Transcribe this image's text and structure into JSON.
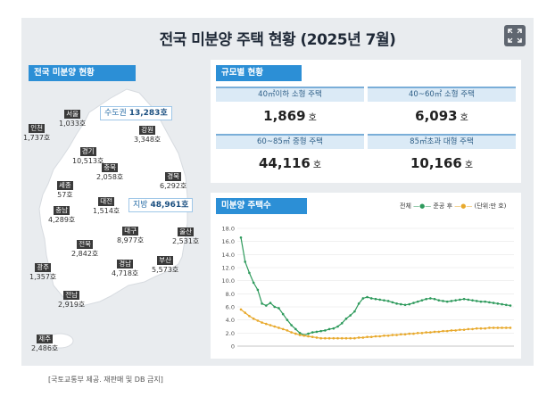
{
  "title": "전국 미분양 주택 현황 (2025년 7월)",
  "expand_icon": "expand-icon",
  "map_section": {
    "label": "전국 미분양 현황",
    "capital_area": {
      "name": "수도권",
      "value": "13,283호"
    },
    "provinces_area": {
      "name": "지방",
      "value": "48,961호"
    },
    "regions": [
      {
        "name": "서울",
        "value": "1,033호"
      },
      {
        "name": "인천",
        "value": "1,737호"
      },
      {
        "name": "강원",
        "value": "3,348호"
      },
      {
        "name": "경기",
        "value": "10,513호"
      },
      {
        "name": "충북",
        "value": "2,058호"
      },
      {
        "name": "경북",
        "value": "6,292호"
      },
      {
        "name": "세종",
        "value": "57호"
      },
      {
        "name": "대전",
        "value": "1,514호"
      },
      {
        "name": "충남",
        "value": "4,289호"
      },
      {
        "name": "대구",
        "value": "8,977호"
      },
      {
        "name": "울산",
        "value": "2,531호"
      },
      {
        "name": "전북",
        "value": "2,842호"
      },
      {
        "name": "경남",
        "value": "4,718호"
      },
      {
        "name": "부산",
        "value": "5,573호"
      },
      {
        "name": "광주",
        "value": "1,357호"
      },
      {
        "name": "전남",
        "value": "2,919호"
      },
      {
        "name": "제주",
        "value": "2,486호"
      }
    ]
  },
  "size_section": {
    "label": "규모별 현황",
    "cells": [
      {
        "header": "40㎡이하 소형 주택",
        "value": "1,869",
        "unit": "호"
      },
      {
        "header": "40~60㎡ 소형 주택",
        "value": "6,093",
        "unit": "호"
      },
      {
        "header": "60~85㎡ 중형 주택",
        "value": "44,116",
        "unit": "호"
      },
      {
        "header": "85㎡초과 대형 주택",
        "value": "10,166",
        "unit": "호"
      }
    ]
  },
  "chart_section": {
    "label": "미분양 주택수",
    "legend_total": "전체",
    "legend_completed": "준공 후",
    "legend_unit": "(단위:만 호)"
  },
  "colors": {
    "total": "#2e9a5c",
    "completed": "#e8a92c",
    "accent": "#2c8fd6"
  },
  "chart_data": {
    "type": "line",
    "ylim": [
      0,
      18
    ],
    "yticks": [
      0,
      2.0,
      4.0,
      6.0,
      8.0,
      10.0,
      12.0,
      14.0,
      16.0,
      18.0
    ],
    "series": [
      {
        "name": "전체",
        "values": [
          16.6,
          12.9,
          11.2,
          9.7,
          8.6,
          6.5,
          6.2,
          6.6,
          6.0,
          5.8,
          4.9,
          4.0,
          3.2,
          2.6,
          2.0,
          1.7,
          1.9,
          2.1,
          2.2,
          2.3,
          2.4,
          2.6,
          2.7,
          3.0,
          3.5,
          4.2,
          4.7,
          5.3,
          6.5,
          7.3,
          7.5,
          7.3,
          7.2,
          7.1,
          7.0,
          6.9,
          6.7,
          6.5,
          6.4,
          6.3,
          6.4,
          6.6,
          6.8,
          7.0,
          7.2,
          7.3,
          7.2,
          7.0,
          6.9,
          6.8,
          6.9,
          7.0,
          7.1,
          7.2,
          7.1,
          7.0,
          6.9,
          6.8,
          6.8,
          6.7,
          6.6,
          6.5,
          6.4,
          6.3,
          6.2
        ]
      },
      {
        "name": "준공 후",
        "values": [
          5.6,
          5.1,
          4.6,
          4.2,
          3.9,
          3.6,
          3.4,
          3.2,
          3.0,
          2.8,
          2.6,
          2.4,
          2.1,
          1.9,
          1.7,
          1.6,
          1.5,
          1.4,
          1.3,
          1.2,
          1.2,
          1.2,
          1.2,
          1.2,
          1.2,
          1.2,
          1.2,
          1.2,
          1.3,
          1.3,
          1.4,
          1.4,
          1.5,
          1.5,
          1.6,
          1.6,
          1.7,
          1.7,
          1.8,
          1.8,
          1.9,
          1.9,
          2.0,
          2.0,
          2.1,
          2.1,
          2.2,
          2.2,
          2.3,
          2.3,
          2.4,
          2.4,
          2.5,
          2.5,
          2.6,
          2.6,
          2.7,
          2.7,
          2.7,
          2.8,
          2.8,
          2.8,
          2.8,
          2.8,
          2.8
        ]
      }
    ]
  },
  "footnote": "[국토교통부 제공. 재판매 및 DB 금지]"
}
